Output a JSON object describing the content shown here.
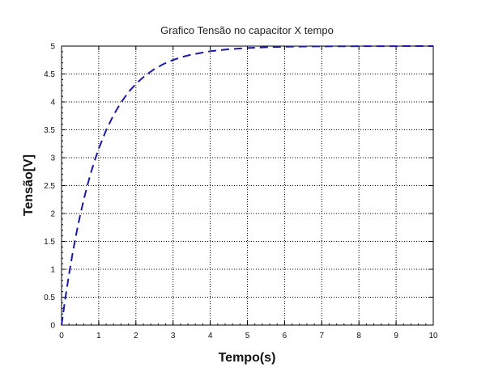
{
  "chart_data": {
    "type": "line",
    "title": "Grafico Tensão no capacitor X tempo",
    "xlabel": "Tempo(s)",
    "ylabel": "Tensão[V]",
    "xlim": [
      0,
      10
    ],
    "ylim": [
      0,
      5
    ],
    "x_ticks": [
      "0",
      "1",
      "2",
      "3",
      "4",
      "5",
      "6",
      "7",
      "8",
      "9",
      "10"
    ],
    "y_ticks": [
      "0",
      "0.5",
      "1",
      "1.5",
      "2",
      "2.5",
      "3",
      "3.5",
      "4",
      "4.5",
      "5"
    ],
    "grid": true,
    "line_style": "dashed",
    "line_color": "#1a1aa8",
    "series": [
      {
        "x": [
          0,
          0.1,
          0.2,
          0.3,
          0.4,
          0.5,
          0.6,
          0.7,
          0.8,
          0.9,
          1.0,
          1.2,
          1.4,
          1.6,
          1.8,
          2.0,
          2.25,
          2.5,
          2.75,
          3.0,
          3.25,
          3.5,
          4.0,
          4.5,
          5.0,
          5.5,
          6.0,
          6.5,
          7.0,
          8.0,
          9.0,
          10.0
        ],
        "y": [
          0,
          0.476,
          0.906,
          1.296,
          1.648,
          1.967,
          2.256,
          2.517,
          2.753,
          2.967,
          3.161,
          3.494,
          3.766,
          3.99,
          4.174,
          4.323,
          4.473,
          4.59,
          4.681,
          4.751,
          4.806,
          4.849,
          4.908,
          4.944,
          4.966,
          4.98,
          4.988,
          4.993,
          4.995,
          4.998,
          4.999,
          5.0
        ]
      }
    ]
  }
}
